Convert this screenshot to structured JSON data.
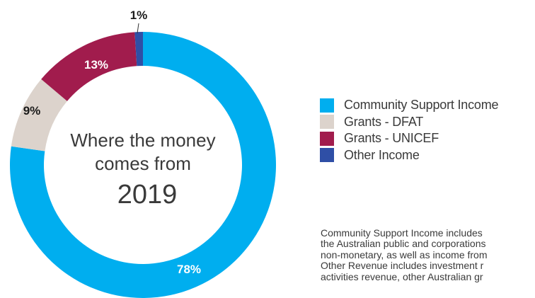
{
  "chart_data": {
    "type": "pie",
    "variant": "donut",
    "center_title_line1": "Where the money",
    "center_title_line2": "comes from",
    "center_year": "2019",
    "slices": [
      {
        "name": "Community Support Income",
        "value": 78,
        "label": "78%",
        "color": "#00aeef"
      },
      {
        "name": "Grants - DFAT",
        "value": 9,
        "label": "9%",
        "color": "#dcd3cc"
      },
      {
        "name": "Grants - UNICEF",
        "value": 13,
        "label": "13%",
        "color": "#a11c4d"
      },
      {
        "name": "Other Income",
        "value": 1,
        "label": "1%",
        "color": "#2f4fa6"
      }
    ],
    "legend_position": "right"
  },
  "footnote": {
    "lines": [
      "Community Support Income includes",
      "the Australian public and corporations",
      "non-monetary, as well as income from",
      "Other Revenue includes investment r",
      "activities revenue, other Australian gr"
    ]
  }
}
